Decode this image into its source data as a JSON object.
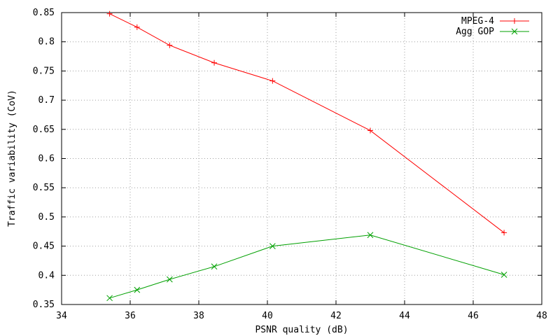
{
  "chart_data": {
    "type": "line",
    "title": "",
    "xlabel": "PSNR quality (dB)",
    "ylabel": "Traffic variability (CoV)",
    "xlim": [
      34,
      48
    ],
    "ylim": [
      0.35,
      0.85
    ],
    "xticks": [
      34,
      36,
      38,
      40,
      42,
      44,
      46,
      48
    ],
    "yticks": [
      0.35,
      0.4,
      0.45,
      0.5,
      0.55,
      0.6,
      0.65,
      0.7,
      0.75,
      0.8,
      0.85
    ],
    "grid": true,
    "legend_position": "top-right",
    "series": [
      {
        "name": "MPEG-4",
        "color": "#ff0000",
        "marker": "plus",
        "x": [
          35.4,
          36.2,
          37.15,
          38.45,
          40.15,
          43.0,
          46.9
        ],
        "y": [
          0.848,
          0.825,
          0.794,
          0.764,
          0.733,
          0.648,
          0.473
        ]
      },
      {
        "name": "Agg GOP",
        "color": "#00a000",
        "marker": "cross",
        "x": [
          35.4,
          36.2,
          37.15,
          38.45,
          40.15,
          43.0,
          46.9
        ],
        "y": [
          0.361,
          0.375,
          0.393,
          0.415,
          0.45,
          0.469,
          0.401
        ]
      }
    ]
  }
}
